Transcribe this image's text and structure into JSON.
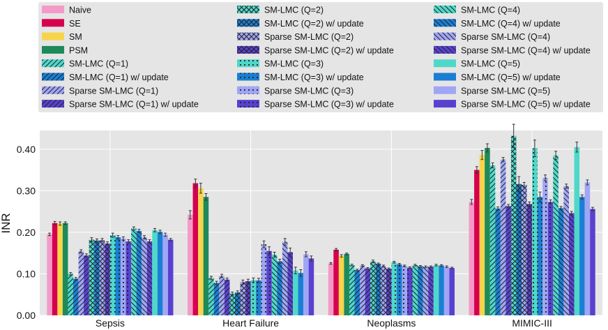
{
  "chart_data": {
    "type": "bar",
    "title": "",
    "xlabel": "",
    "ylabel": "INR",
    "ylim": [
      0,
      0.445
    ],
    "yticks": [
      "0.00",
      "0.10",
      "0.20",
      "0.30",
      "0.40"
    ],
    "ytick_values": [
      0,
      0.1,
      0.2,
      0.3,
      0.4
    ],
    "grid": true,
    "legend_position": "top",
    "categories": [
      "Sepsis",
      "Heart Failure",
      "Neoplasms",
      "MIMIC-III"
    ],
    "series": [
      {
        "name": "Naive",
        "color": "#f49ac8",
        "pattern": "none",
        "values": [
          0.195,
          0.242,
          0.125,
          0.273
        ],
        "errors": [
          0.003,
          0.01,
          0.002,
          0.006
        ]
      },
      {
        "name": "SE",
        "color": "#d6004f",
        "pattern": "none",
        "values": [
          0.222,
          0.318,
          0.158,
          0.35
        ],
        "errors": [
          0.004,
          0.01,
          0.003,
          0.008
        ]
      },
      {
        "name": "SM",
        "color": "#f7d44a",
        "pattern": "none",
        "values": [
          0.221,
          0.306,
          0.143,
          0.386
        ],
        "errors": [
          0.004,
          0.012,
          0.003,
          0.011
        ]
      },
      {
        "name": "PSM",
        "color": "#1e8a5a",
        "pattern": "none",
        "values": [
          0.222,
          0.285,
          0.148,
          0.403
        ],
        "errors": [
          0.003,
          0.008,
          0.002,
          0.01
        ]
      },
      {
        "name": "SM-LMC (Q=1)",
        "color": "#4ed8c9",
        "pattern": "diag",
        "values": [
          0.1,
          0.09,
          0.121,
          0.361
        ],
        "errors": [
          0.003,
          0.004,
          0.002,
          0.006
        ]
      },
      {
        "name": "SM-LMC (Q=1) w/ update",
        "color": "#1a7fd4",
        "pattern": "diag",
        "values": [
          0.088,
          0.078,
          0.109,
          0.257
        ],
        "errors": [
          0.003,
          0.004,
          0.002,
          0.004
        ]
      },
      {
        "name": "Sparse SM-LMC (Q=1)",
        "color": "#a0a6f5",
        "pattern": "diag",
        "values": [
          0.154,
          0.095,
          0.12,
          0.375
        ],
        "errors": [
          0.004,
          0.004,
          0.002,
          0.005
        ]
      },
      {
        "name": "Sparse SM-LMC (Q=1) w/ update",
        "color": "#5941cf",
        "pattern": "diag",
        "values": [
          0.144,
          0.086,
          0.113,
          0.263
        ],
        "errors": [
          0.004,
          0.004,
          0.002,
          0.004
        ]
      },
      {
        "name": "SM-LMC (Q=2)",
        "color": "#4ed8c9",
        "pattern": "cross",
        "values": [
          0.182,
          0.052,
          0.13,
          0.432
        ],
        "errors": [
          0.005,
          0.004,
          0.003,
          0.028
        ]
      },
      {
        "name": "SM-LMC (Q=2) w/ update",
        "color": "#1a7fd4",
        "pattern": "cross",
        "values": [
          0.18,
          0.055,
          0.124,
          0.316
        ],
        "errors": [
          0.004,
          0.004,
          0.002,
          0.018
        ]
      },
      {
        "name": "Sparse SM-LMC (Q=2)",
        "color": "#a0a6f5",
        "pattern": "cross",
        "values": [
          0.181,
          0.08,
          0.119,
          0.314
        ],
        "errors": [
          0.004,
          0.005,
          0.002,
          0.006
        ]
      },
      {
        "name": "Sparse SM-LMC (Q=2) w/ update",
        "color": "#5941cf",
        "pattern": "cross",
        "values": [
          0.173,
          0.082,
          0.112,
          0.268
        ],
        "errors": [
          0.004,
          0.005,
          0.002,
          0.005
        ]
      },
      {
        "name": "SM-LMC (Q=3)",
        "color": "#4ed8c9",
        "pattern": "dots",
        "values": [
          0.193,
          0.085,
          0.128,
          0.402
        ],
        "errors": [
          0.005,
          0.005,
          0.002,
          0.02
        ]
      },
      {
        "name": "SM-LMC (Q=3) w/ update",
        "color": "#1a7fd4",
        "pattern": "dots",
        "values": [
          0.188,
          0.084,
          0.123,
          0.285
        ],
        "errors": [
          0.004,
          0.005,
          0.002,
          0.012
        ]
      },
      {
        "name": "Sparse SM-LMC (Q=3)",
        "color": "#a0a6f5",
        "pattern": "dots",
        "values": [
          0.185,
          0.171,
          0.119,
          0.331
        ],
        "errors": [
          0.004,
          0.008,
          0.002,
          0.007
        ]
      },
      {
        "name": "Sparse SM-LMC (Q=3) w/ update",
        "color": "#5941cf",
        "pattern": "dots",
        "values": [
          0.178,
          0.155,
          0.115,
          0.273
        ],
        "errors": [
          0.004,
          0.01,
          0.002,
          0.005
        ]
      },
      {
        "name": "SM-LMC (Q=4)",
        "color": "#4ed8c9",
        "pattern": "back",
        "values": [
          0.209,
          0.146,
          0.121,
          0.385
        ],
        "errors": [
          0.004,
          0.006,
          0.002,
          0.01
        ]
      },
      {
        "name": "SM-LMC (Q=4) w/ update",
        "color": "#1a7fd4",
        "pattern": "back",
        "values": [
          0.203,
          0.13,
          0.118,
          0.258
        ],
        "errors": [
          0.004,
          0.005,
          0.002,
          0.004
        ]
      },
      {
        "name": "Sparse SM-LMC (Q=4)",
        "color": "#a0a6f5",
        "pattern": "back",
        "values": [
          0.188,
          0.177,
          0.117,
          0.311
        ],
        "errors": [
          0.004,
          0.008,
          0.002,
          0.005
        ]
      },
      {
        "name": "Sparse SM-LMC (Q=4) w/ update",
        "color": "#5941cf",
        "pattern": "back",
        "values": [
          0.178,
          0.152,
          0.117,
          0.246
        ],
        "errors": [
          0.004,
          0.01,
          0.002,
          0.004
        ]
      },
      {
        "name": "SM-LMC (Q=5)",
        "color": "#4ed8c9",
        "pattern": "none",
        "values": [
          0.205,
          0.108,
          0.121,
          0.405
        ],
        "errors": [
          0.004,
          0.008,
          0.002,
          0.012
        ]
      },
      {
        "name": "SM-LMC (Q=5) w/ update",
        "color": "#1a7fd4",
        "pattern": "none",
        "values": [
          0.201,
          0.102,
          0.12,
          0.285
        ],
        "errors": [
          0.004,
          0.008,
          0.002,
          0.005
        ]
      },
      {
        "name": "Sparse SM-LMC (Q=5)",
        "color": "#a0a6f5",
        "pattern": "none",
        "values": [
          0.194,
          0.147,
          0.117,
          0.32
        ],
        "errors": [
          0.004,
          0.006,
          0.002,
          0.006
        ]
      },
      {
        "name": "Sparse SM-LMC (Q=5) w/ update",
        "color": "#5941cf",
        "pattern": "none",
        "values": [
          0.182,
          0.137,
          0.114,
          0.256
        ],
        "errors": [
          0.003,
          0.006,
          0.002,
          0.004
        ]
      }
    ]
  }
}
